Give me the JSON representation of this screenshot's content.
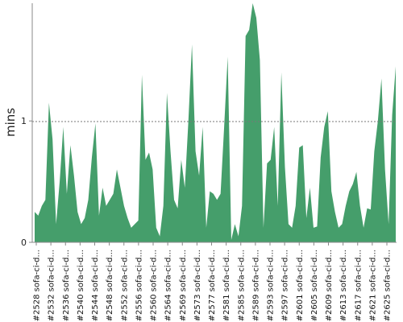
{
  "chart_data": {
    "type": "area",
    "title": "",
    "xlabel": "",
    "ylabel": "mins",
    "ylim": [
      0,
      1.97
    ],
    "yticks": [
      0,
      1
    ],
    "reference_line": 1,
    "grid": false,
    "legend": "none",
    "color": "#459e6b",
    "tick_labels": [
      "#2528 sofa-ci-d...",
      "#2532 sofa-ci-d...",
      "#2536 sofa-ci-d...",
      "#2540 sofa-ci-d...",
      "#2544 sofa-ci-d...",
      "#2548 sofa-ci-d...",
      "#2552 sofa-ci-d...",
      "#2556 sofa-ci-d...",
      "#2560 sofa-ci-d...",
      "#2564 sofa-ci-d...",
      "#2569 sofa-ci-d...",
      "#2573 sofa-ci-d...",
      "#2577 sofa-ci-d...",
      "#2581 sofa-ci-d...",
      "#2585 sofa-ci-d...",
      "#2589 sofa-ci-d...",
      "#2593 sofa-ci-d...",
      "#2597 sofa-ci-d...",
      "#2601 sofa-ci-d...",
      "#2605 sofa-ci-d...",
      "#2609 sofa-ci-d...",
      "#2613 sofa-ci-d...",
      "#2617 sofa-ci-d...",
      "#2621 sofa-ci-d...",
      "#2625 sofa-ci-d..."
    ],
    "values": [
      0.25,
      0.22,
      0.3,
      0.35,
      1.15,
      0.85,
      0.15,
      0.5,
      0.95,
      0.4,
      0.8,
      0.55,
      0.25,
      0.15,
      0.2,
      0.35,
      0.7,
      0.98,
      0.22,
      0.45,
      0.3,
      0.35,
      0.4,
      0.6,
      0.45,
      0.3,
      0.2,
      0.12,
      0.15,
      0.18,
      1.38,
      0.68,
      0.74,
      0.6,
      0.12,
      0.05,
      0.3,
      1.23,
      0.75,
      0.35,
      0.28,
      0.68,
      0.45,
      1.0,
      1.63,
      0.75,
      0.55,
      0.95,
      0.12,
      0.42,
      0.4,
      0.35,
      0.4,
      0.95,
      1.53,
      0.02,
      0.15,
      0.05,
      0.3,
      1.7,
      1.75,
      1.97,
      1.85,
      1.5,
      0.12,
      0.65,
      0.68,
      0.95,
      0.3,
      1.4,
      0.62,
      0.15,
      0.12,
      0.3,
      0.78,
      0.8,
      0.2,
      0.45,
      0.12,
      0.13,
      0.7,
      0.95,
      1.08,
      0.42,
      0.25,
      0.12,
      0.15,
      0.3,
      0.42,
      0.48,
      0.58,
      0.3,
      0.12,
      0.28,
      0.27,
      0.75,
      1.0,
      1.35,
      0.6,
      0.15,
      1.05,
      1.45
    ]
  }
}
